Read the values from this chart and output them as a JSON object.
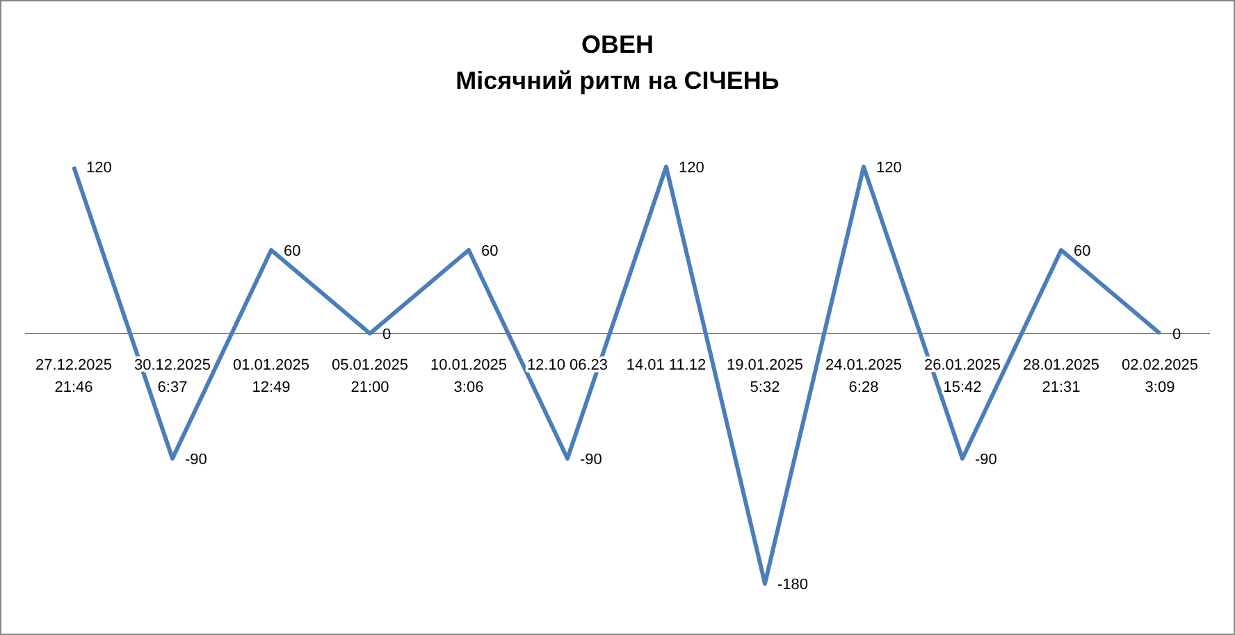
{
  "chart_data": {
    "type": "line",
    "title": "ОВЕН",
    "subtitle": "Місячний ритм на СІЧЕНЬ",
    "categories": [
      "27.12.2025\n21:46",
      "30.12.2025\n6:37",
      "01.01.2025\n12:49",
      "05.01.2025\n21:00",
      "10.01.2025\n3:06",
      "12.10 06.23",
      "14.01 11.12",
      "19.01.2025\n5:32",
      "24.01.2025\n6:28",
      "26.01.2025\n15:42",
      "28.01.2025\n21:31",
      "02.02.2025\n3:09"
    ],
    "series": [
      {
        "color": "#4a7ebb",
        "values": [
          120,
          -90,
          60,
          0,
          60,
          -90,
          120,
          -180,
          120,
          -90,
          60,
          0
        ]
      }
    ],
    "data_labels": true,
    "marker": "none",
    "line_style": "solid"
  }
}
